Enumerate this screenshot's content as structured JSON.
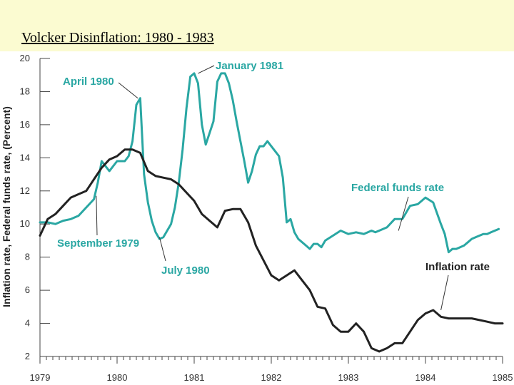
{
  "slide": {
    "title": "Volcker Disinflation: 1980 - 1983"
  },
  "colors": {
    "banner": "#fbfbd1",
    "fed_funds": "#2aa7a3",
    "inflation": "#222222",
    "axis": "#444444"
  },
  "chart_data": {
    "type": "line",
    "title": "",
    "xlabel": "",
    "ylabel": "Inflation rate, Federal funds rate, (Percent)",
    "xlim": [
      1979,
      1985
    ],
    "ylim": [
      2,
      20
    ],
    "x_ticks": [
      "1979",
      "1980",
      "1981",
      "1982",
      "1983",
      "1984",
      "1985"
    ],
    "y_ticks": [
      "2",
      "4",
      "6",
      "8",
      "10",
      "12",
      "14",
      "16",
      "18",
      "20"
    ],
    "series": [
      {
        "name": "Federal funds rate",
        "color": "#2aa7a3",
        "x": [
          1979.0,
          1979.1,
          1979.2,
          1979.3,
          1979.4,
          1979.5,
          1979.6,
          1979.7,
          1979.75,
          1979.8,
          1979.85,
          1979.9,
          1980.0,
          1980.1,
          1980.15,
          1980.2,
          1980.25,
          1980.3,
          1980.35,
          1980.4,
          1980.45,
          1980.5,
          1980.55,
          1980.6,
          1980.65,
          1980.7,
          1980.75,
          1980.8,
          1980.85,
          1980.9,
          1980.95,
          1981.0,
          1981.05,
          1981.1,
          1981.15,
          1981.2,
          1981.25,
          1981.3,
          1981.35,
          1981.4,
          1981.45,
          1981.5,
          1981.55,
          1981.6,
          1981.65,
          1981.7,
          1981.75,
          1981.8,
          1981.85,
          1981.9,
          1981.95,
          1982.0,
          1982.1,
          1982.15,
          1982.2,
          1982.25,
          1982.3,
          1982.35,
          1982.4,
          1982.45,
          1982.5,
          1982.55,
          1982.6,
          1982.65,
          1982.7,
          1982.8,
          1982.9,
          1983.0,
          1983.1,
          1983.2,
          1983.3,
          1983.35,
          1983.4,
          1983.5,
          1983.6,
          1983.7,
          1983.8,
          1983.9,
          1984.0,
          1984.1,
          1984.2,
          1984.25,
          1984.3,
          1984.35,
          1984.4,
          1984.45,
          1984.5,
          1984.55,
          1984.6,
          1984.65,
          1984.7,
          1984.75,
          1984.8,
          1984.85,
          1984.9,
          1984.95
        ],
        "values": [
          10.1,
          10.1,
          10.0,
          10.2,
          10.3,
          10.5,
          11.0,
          11.5,
          12.5,
          13.8,
          13.5,
          13.2,
          13.8,
          13.8,
          14.1,
          15.0,
          17.2,
          17.6,
          13.0,
          11.3,
          10.2,
          9.5,
          9.1,
          9.2,
          9.6,
          10.0,
          11.0,
          12.5,
          14.5,
          17.0,
          18.9,
          19.1,
          18.5,
          16.0,
          14.8,
          15.5,
          16.2,
          18.6,
          19.1,
          19.1,
          18.5,
          17.5,
          16.2,
          15.0,
          13.8,
          12.5,
          13.2,
          14.2,
          14.7,
          14.7,
          15.0,
          14.7,
          14.1,
          12.8,
          10.1,
          10.3,
          9.5,
          9.1,
          8.9,
          8.7,
          8.5,
          8.8,
          8.8,
          8.6,
          9.0,
          9.3,
          9.6,
          9.4,
          9.5,
          9.4,
          9.6,
          9.5,
          9.6,
          9.8,
          10.3,
          10.3,
          11.1,
          11.2,
          11.6,
          11.3,
          10.0,
          9.4,
          8.3,
          8.5,
          8.5,
          8.6,
          8.7,
          8.9,
          9.1,
          9.2,
          9.3,
          9.4,
          9.4,
          9.5,
          9.6,
          9.7
        ]
      },
      {
        "name": "Inflation rate",
        "color": "#222222",
        "x": [
          1979.0,
          1979.1,
          1979.2,
          1979.3,
          1979.4,
          1979.5,
          1979.6,
          1979.7,
          1979.8,
          1979.9,
          1980.0,
          1980.1,
          1980.2,
          1980.3,
          1980.4,
          1980.5,
          1980.6,
          1980.7,
          1980.8,
          1980.9,
          1981.0,
          1981.1,
          1981.2,
          1981.3,
          1981.4,
          1981.5,
          1981.6,
          1981.7,
          1981.8,
          1981.9,
          1982.0,
          1982.1,
          1982.2,
          1982.3,
          1982.4,
          1982.5,
          1982.6,
          1982.7,
          1982.8,
          1982.9,
          1983.0,
          1983.1,
          1983.2,
          1983.3,
          1983.4,
          1983.5,
          1983.6,
          1983.7,
          1983.8,
          1983.9,
          1984.0,
          1984.1,
          1984.2,
          1984.3,
          1984.4,
          1984.5,
          1984.6,
          1984.7,
          1984.8,
          1984.9,
          1985.0
        ],
        "values": [
          9.3,
          10.3,
          10.6,
          11.1,
          11.6,
          11.8,
          12.0,
          12.7,
          13.4,
          13.9,
          14.1,
          14.5,
          14.5,
          14.3,
          13.2,
          12.9,
          12.8,
          12.7,
          12.4,
          11.9,
          11.4,
          10.6,
          10.2,
          9.8,
          10.8,
          10.9,
          10.9,
          10.1,
          8.7,
          7.8,
          6.9,
          6.6,
          6.9,
          7.2,
          6.6,
          6.0,
          5.0,
          4.9,
          3.9,
          3.5,
          3.5,
          4.0,
          3.5,
          2.5,
          2.3,
          2.5,
          2.8,
          2.8,
          3.5,
          4.2,
          4.6,
          4.8,
          4.4,
          4.3,
          4.3,
          4.3,
          4.3,
          4.2,
          4.1,
          4.0,
          4.0
        ]
      }
    ],
    "annotations": [
      "April 1980",
      "January 1981",
      "September 1979",
      "July 1980",
      "Federal funds rate",
      "Inflation rate"
    ]
  }
}
